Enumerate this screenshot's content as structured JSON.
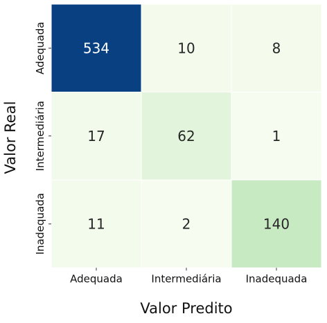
{
  "chart_data": {
    "type": "heatmap",
    "title": "",
    "xlabel": "Valor Predito",
    "ylabel": "Valor Real",
    "x_categories": [
      "Adequada",
      "Intermediária",
      "Inadequada"
    ],
    "y_categories": [
      "Adequada",
      "Intermediária",
      "Inadequada"
    ],
    "values": [
      [
        534,
        10,
        8
      ],
      [
        17,
        62,
        1
      ],
      [
        11,
        2,
        140
      ]
    ],
    "colormap": "GnBu",
    "color_range": [
      0,
      534
    ],
    "colorbar": false,
    "grid": false,
    "cell_gap_color": "#ffffff"
  }
}
